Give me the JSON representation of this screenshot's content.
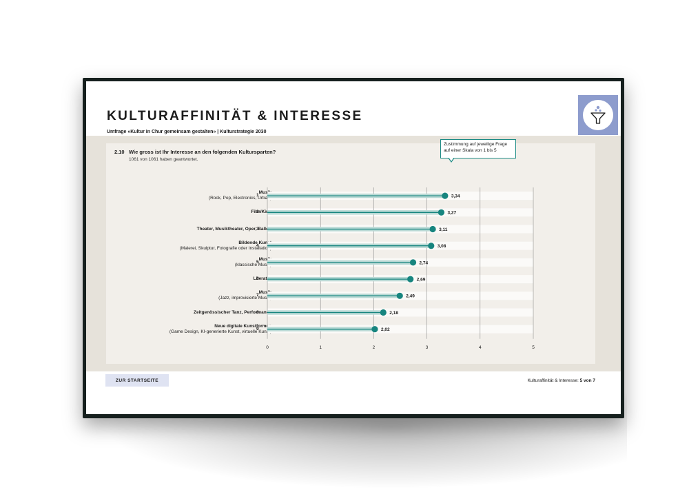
{
  "header": {
    "title": "KULTURAFFINITÄT & INTERESSE",
    "subtitle": "Umfrage «Kultur in Chur gemeinsam gestalten» | Kulturstrategie 2030"
  },
  "question": {
    "number": "2.10",
    "text": "Wie gross ist Ihr Interesse an den folgenden Kultursparten?",
    "responses": "1061 von 1061 haben geantwortet."
  },
  "callout": {
    "text": "Zustimmung auf jeweilige Frage auf einer Skala von 1 bis 5"
  },
  "footer": {
    "home_button": "ZUR STARTSEITE",
    "section_label": "Kulturaffinität & Interesse: ",
    "page_label": "5 von 7"
  },
  "logo": {
    "icon": "funnel-icon",
    "bg_color": "#8d9ccd"
  },
  "chart_data": {
    "type": "lollipop",
    "xlim": [
      0,
      5
    ],
    "x_ticks": [
      "0",
      "1",
      "2",
      "3",
      "4",
      "5"
    ],
    "grid": "vertical",
    "accent_color": "#17857f",
    "items": [
      {
        "rank": "1",
        "label": "Musik",
        "sublabel": "(Rock, Pop, Electronics, Urban)",
        "value": 3.34,
        "value_label": "3,34"
      },
      {
        "rank": "2",
        "label": "Film/Kino",
        "sublabel": "",
        "value": 3.27,
        "value_label": "3,27"
      },
      {
        "rank": "3",
        "label": "Theater, Musiktheater, Oper, Ballett",
        "sublabel": "",
        "value": 3.11,
        "value_label": "3,11"
      },
      {
        "rank": "4",
        "label": "Bildende Kunst",
        "sublabel": "(Malerei, Skulptur, Fotografie oder Installation)",
        "value": 3.08,
        "value_label": "3,08"
      },
      {
        "rank": "5",
        "label": "Musik",
        "sublabel": "(klassische Musik)",
        "value": 2.74,
        "value_label": "2,74"
      },
      {
        "rank": "6",
        "label": "Literatur",
        "sublabel": "",
        "value": 2.69,
        "value_label": "2,69"
      },
      {
        "rank": "7",
        "label": "Musik",
        "sublabel": "(Jazz, improvisierte Musik)",
        "value": 2.49,
        "value_label": "2,49"
      },
      {
        "rank": "8",
        "label": "Zeitgenössischer Tanz, Performance",
        "sublabel": "",
        "value": 2.18,
        "value_label": "2,18"
      },
      {
        "rank": "9",
        "label": "Neue digitale Kunstformen",
        "sublabel": "(Game Design, KI-generierte Kunst, virtuelle Kunst)",
        "value": 2.02,
        "value_label": "2,02"
      }
    ]
  }
}
